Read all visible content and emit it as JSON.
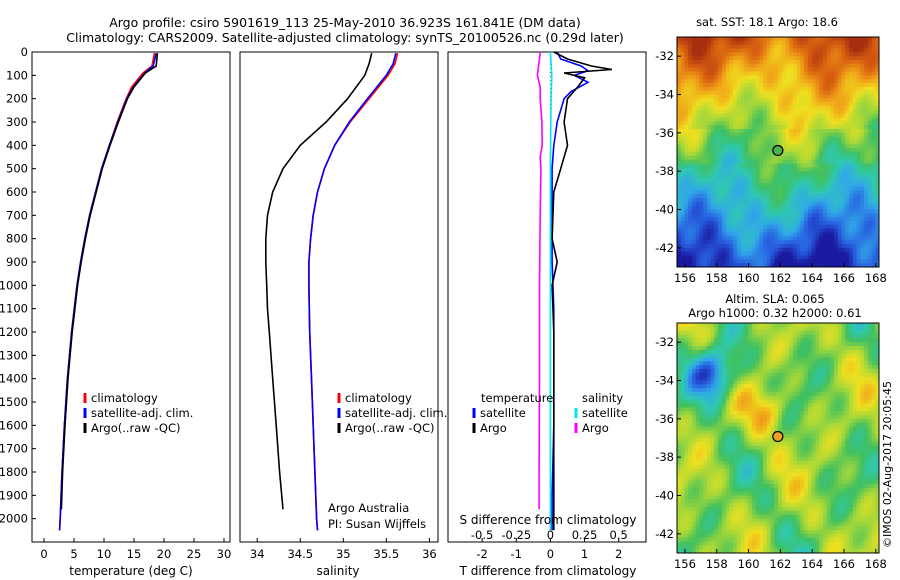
{
  "header": {
    "line1": "Argo profile: csiro 5901619_113 25-May-2010 36.923S 161.841E (DM data)",
    "line2": "Climatology: CARS2009. Satellite-adjusted climatology: synTS_20100526.nc (0.29d later)"
  },
  "depth_ticks": [
    0,
    100,
    200,
    300,
    400,
    500,
    600,
    700,
    800,
    900,
    1000,
    1100,
    1200,
    1300,
    1400,
    1500,
    1600,
    1700,
    1800,
    1900,
    2000
  ],
  "colors": {
    "climatology": "#ff0000",
    "satellite_adj": "#0000ff",
    "argo": "#000000",
    "sat_salinity": "#00e5ee",
    "argo_salinity": "#ff00ff",
    "marker": "#ff9900"
  },
  "chart_data": [
    {
      "id": "temperature",
      "type": "line",
      "xlabel": "temperature (deg C)",
      "xlim": [
        -2,
        31
      ],
      "xticks": [
        0,
        5,
        10,
        15,
        20,
        25,
        30
      ],
      "ylim": [
        2100,
        0
      ],
      "legend": {
        "placement": "bottom-left",
        "entries": [
          "climatology",
          "satellite-adj. clim.",
          "Argo(..raw -QC)"
        ]
      },
      "series": [
        {
          "name": "climatology",
          "color": "#ff0000",
          "depth": [
            5,
            60,
            90,
            150,
            200,
            300,
            400,
            500,
            600,
            700,
            800,
            900,
            1000,
            1200,
            1400,
            1600,
            1800,
            2000,
            2050
          ],
          "values": [
            18.4,
            18.0,
            16.5,
            14.6,
            13.7,
            12.2,
            10.9,
            9.6,
            8.6,
            7.6,
            6.8,
            6.1,
            5.5,
            4.6,
            3.9,
            3.4,
            3.0,
            2.7,
            2.6
          ]
        },
        {
          "name": "satellite-adj. clim.",
          "color": "#0000ff",
          "depth": [
            5,
            60,
            90,
            150,
            200,
            300,
            400,
            500,
            600,
            700,
            800,
            900,
            1000,
            1200,
            1400,
            1600,
            1800,
            2000,
            2050
          ],
          "values": [
            18.7,
            18.2,
            16.8,
            14.9,
            13.8,
            12.3,
            10.9,
            9.6,
            8.6,
            7.6,
            6.8,
            6.1,
            5.5,
            4.6,
            3.9,
            3.4,
            3.0,
            2.7,
            2.6
          ]
        },
        {
          "name": "Argo(..raw -QC)",
          "color": "#000000",
          "depth": [
            5,
            60,
            90,
            150,
            200,
            300,
            400,
            500,
            600,
            700,
            800,
            900,
            1000,
            1200,
            1400,
            1600,
            1800,
            1960
          ],
          "values": [
            18.9,
            18.7,
            16.9,
            15.0,
            13.9,
            12.4,
            11.0,
            9.7,
            8.7,
            7.7,
            6.9,
            6.2,
            5.6,
            4.7,
            4.0,
            3.5,
            3.1,
            2.9
          ]
        }
      ]
    },
    {
      "id": "salinity",
      "type": "line",
      "xlabel": "salinity",
      "xlim": [
        33.8,
        36.1
      ],
      "xticks": [
        34,
        34.5,
        35,
        35.5,
        36
      ],
      "ylim": [
        2100,
        0
      ],
      "legend": {
        "placement": "bottom-right",
        "entries": [
          "climatology",
          "satellite-adj. clim.",
          "Argo(..raw -QC)"
        ]
      },
      "annotations": [
        "Argo Australia",
        "PI: Susan Wijffels"
      ],
      "series": [
        {
          "name": "climatology",
          "color": "#ff0000",
          "depth": [
            5,
            50,
            100,
            200,
            300,
            400,
            500,
            600,
            700,
            800,
            900,
            1000,
            1200,
            1400,
            1600,
            1800,
            2000,
            2050
          ],
          "values": [
            35.63,
            35.6,
            35.52,
            35.3,
            35.08,
            34.9,
            34.78,
            34.7,
            34.65,
            34.62,
            34.6,
            34.6,
            34.61,
            34.63,
            34.65,
            34.67,
            34.69,
            34.7
          ]
        },
        {
          "name": "satellite-adj. clim.",
          "color": "#0000ff",
          "depth": [
            5,
            50,
            100,
            200,
            300,
            400,
            500,
            600,
            700,
            800,
            900,
            1000,
            1200,
            1400,
            1600,
            1800,
            2000,
            2050
          ],
          "values": [
            35.61,
            35.58,
            35.5,
            35.28,
            35.07,
            34.9,
            34.78,
            34.7,
            34.65,
            34.62,
            34.6,
            34.6,
            34.61,
            34.63,
            34.65,
            34.67,
            34.69,
            34.7
          ]
        },
        {
          "name": "Argo(..raw -QC)",
          "color": "#000000",
          "depth": [
            5,
            50,
            100,
            200,
            300,
            400,
            500,
            600,
            700,
            800,
            900,
            1000,
            1100,
            1200,
            1400,
            1600,
            1800,
            1960
          ],
          "values": [
            35.33,
            35.3,
            35.25,
            35.05,
            34.8,
            34.5,
            34.3,
            34.18,
            34.12,
            34.1,
            34.1,
            34.11,
            34.12,
            34.14,
            34.18,
            34.22,
            34.26,
            34.3
          ]
        }
      ]
    },
    {
      "id": "difference",
      "type": "line",
      "xlabel": "T difference from climatology",
      "x2label": "S difference from climatology",
      "xlim": [
        -3.0,
        2.8
      ],
      "xticks": [
        -2,
        -1,
        0,
        1,
        2
      ],
      "x2ticks": [
        -0.5,
        -0.25,
        0,
        0.25,
        0.5
      ],
      "ylim": [
        2100,
        0
      ],
      "legend": {
        "placement": "bottom",
        "temperature_heading": "temperature",
        "salinity_heading": "salinity",
        "entries": [
          "satellite",
          "Argo",
          "satellite",
          "Argo"
        ]
      },
      "series": [
        {
          "name": "temperature satellite",
          "color": "#0000ff",
          "depth": [
            0,
            30,
            60,
            80,
            100,
            130,
            170,
            200,
            300,
            400,
            500,
            700,
            900,
            1100,
            1300,
            1600,
            1900,
            2050
          ],
          "values": [
            0.2,
            0.3,
            0.9,
            1.1,
            0.7,
            1.1,
            0.6,
            0.4,
            0.2,
            0.1,
            0.05,
            0.05,
            0.05,
            0.1,
            0.1,
            0.1,
            0.05,
            0.05
          ]
        },
        {
          "name": "temperature Argo",
          "color": "#000000",
          "depth": [
            0,
            30,
            60,
            75,
            90,
            110,
            150,
            200,
            300,
            400,
            500,
            600,
            800,
            900,
            1000,
            1200,
            1500,
            1800,
            2050
          ],
          "values": [
            0.1,
            0.5,
            1.2,
            1.8,
            0.4,
            1.0,
            0.8,
            0.5,
            0.4,
            0.5,
            0.3,
            0.1,
            0.05,
            0.2,
            0.05,
            0.1,
            0.1,
            0.1,
            0.1
          ]
        },
        {
          "name": "salinity satellite",
          "color": "#00e5ee",
          "depth": [
            0,
            50,
            100,
            200,
            300,
            500,
            700,
            900,
            1200,
            1500,
            1800,
            2050
          ],
          "values": [
            0.0,
            0.02,
            0.04,
            0.02,
            0.01,
            0.0,
            0.0,
            0.0,
            0.0,
            0.0,
            0.0,
            0.0
          ]
        },
        {
          "name": "salinity Argo",
          "color": "#ff00ff",
          "depth": [
            0,
            30,
            60,
            100,
            150,
            200,
            300,
            400,
            450,
            500,
            700,
            1000,
            1400,
            1800,
            1960
          ],
          "values": [
            -0.3,
            -0.32,
            -0.35,
            -0.38,
            -0.3,
            -0.3,
            -0.25,
            -0.24,
            -0.3,
            -0.28,
            -0.3,
            -0.32,
            -0.32,
            -0.33,
            -0.33
          ]
        }
      ]
    },
    {
      "id": "sst_map",
      "type": "heatmap",
      "title": "sat. SST: 18.1 Argo: 18.6",
      "xlim": [
        155.5,
        168.2
      ],
      "ylim": [
        -43,
        -31
      ],
      "xticks": [
        156,
        158,
        160,
        162,
        164,
        166,
        168
      ],
      "yticks": [
        -32,
        -34,
        -36,
        -38,
        -40,
        -42
      ],
      "marker": {
        "lon": 161.84,
        "lat": -36.92,
        "fill": "#4caf50"
      },
      "colormap": [
        "#1a1aa0",
        "#2860e0",
        "#30a8e8",
        "#30c8b0",
        "#40c060",
        "#a8d838",
        "#f0e020",
        "#f0a018",
        "#d86010",
        "#a83010"
      ]
    },
    {
      "id": "sla_map",
      "type": "heatmap",
      "title": "Altim. SLA: 0.065",
      "subtitle": "Argo h1000: 0.32 h2000: 0.61",
      "xlim": [
        155.5,
        168.2
      ],
      "ylim": [
        -43,
        -31
      ],
      "xticks": [
        156,
        158,
        160,
        162,
        164,
        166,
        168
      ],
      "yticks": [
        -32,
        -34,
        -36,
        -38,
        -40,
        -42
      ],
      "marker": {
        "lon": 161.84,
        "lat": -36.92,
        "fill": "#f0a020"
      },
      "colormap": [
        "#1a1aa0",
        "#2860e0",
        "#30a8e8",
        "#30c8b0",
        "#40c060",
        "#a8d838",
        "#f0e020",
        "#f0a018",
        "#d86010",
        "#a83010"
      ]
    }
  ],
  "footer": {
    "stamp": "©IMOS 02-Aug-2017 20:05:45"
  }
}
